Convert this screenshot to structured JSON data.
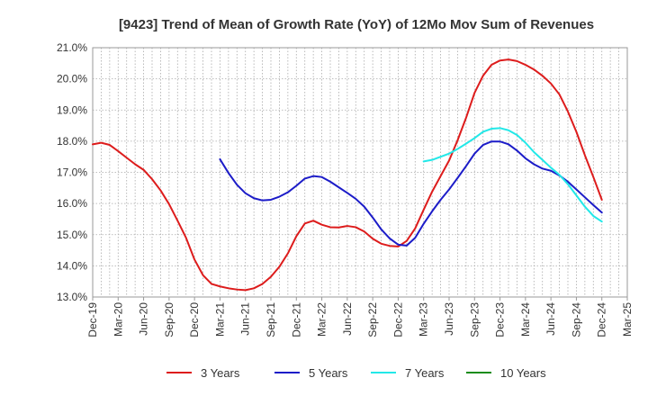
{
  "chart_data": {
    "type": "line",
    "title": "[9423]  Trend of Mean of Growth Rate (YoY) of 12Mo Mov Sum of Revenues",
    "xlabel": "",
    "ylabel": "",
    "ylim": [
      13.0,
      21.0
    ],
    "y_ticks": [
      13.0,
      14.0,
      15.0,
      16.0,
      17.0,
      18.0,
      19.0,
      20.0,
      21.0
    ],
    "y_tick_labels": [
      "13.0%",
      "14.0%",
      "15.0%",
      "16.0%",
      "17.0%",
      "18.0%",
      "19.0%",
      "20.0%",
      "21.0%"
    ],
    "x_tick_labels": [
      "Dec-19",
      "Mar-20",
      "Jun-20",
      "Sep-20",
      "Dec-20",
      "Mar-21",
      "Jun-21",
      "Sep-21",
      "Dec-21",
      "Mar-22",
      "Jun-22",
      "Sep-22",
      "Dec-22",
      "Mar-23",
      "Jun-23",
      "Sep-23",
      "Dec-23",
      "Mar-24",
      "Jun-24",
      "Sep-24",
      "Dec-24",
      "Mar-25"
    ],
    "x_start": "2019-12",
    "x_count_months": 64,
    "grid": true,
    "legend_position": "bottom",
    "series": [
      {
        "name": "3 Years",
        "color": "#dd1c1c",
        "start_index": 0,
        "values": [
          17.9,
          17.95,
          17.88,
          17.68,
          17.47,
          17.26,
          17.08,
          16.78,
          16.42,
          15.98,
          15.45,
          14.9,
          14.2,
          13.7,
          13.42,
          13.34,
          13.28,
          13.24,
          13.22,
          13.28,
          13.42,
          13.65,
          13.97,
          14.4,
          14.95,
          15.36,
          15.45,
          15.32,
          15.24,
          15.23,
          15.28,
          15.24,
          15.1,
          14.87,
          14.71,
          14.64,
          14.62,
          14.8,
          15.2,
          15.8,
          16.38,
          16.88,
          17.38,
          18.03,
          18.75,
          19.55,
          20.1,
          20.45,
          20.59,
          20.62,
          20.57,
          20.45,
          20.3,
          20.1,
          19.85,
          19.5,
          18.95,
          18.3,
          17.55,
          16.85,
          16.12
        ]
      },
      {
        "name": "5 Years",
        "color": "#1c1cc8",
        "start_index": 15,
        "values": [
          17.42,
          16.98,
          16.6,
          16.33,
          16.17,
          16.1,
          16.12,
          16.22,
          16.36,
          16.57,
          16.8,
          16.88,
          16.85,
          16.7,
          16.52,
          16.34,
          16.15,
          15.9,
          15.55,
          15.17,
          14.88,
          14.68,
          14.65,
          14.9,
          15.35,
          15.75,
          16.12,
          16.45,
          16.82,
          17.2,
          17.6,
          17.88,
          17.99,
          17.99,
          17.9,
          17.7,
          17.45,
          17.26,
          17.12,
          17.05,
          16.9,
          16.7,
          16.45,
          16.2,
          15.95,
          15.71
        ]
      },
      {
        "name": "7 Years",
        "color": "#22e8e8",
        "start_index": 39,
        "values": [
          17.35,
          17.4,
          17.5,
          17.6,
          17.75,
          17.92,
          18.1,
          18.3,
          18.4,
          18.42,
          18.35,
          18.2,
          17.95,
          17.65,
          17.4,
          17.15,
          16.92,
          16.62,
          16.26,
          15.9,
          15.6,
          15.42
        ]
      },
      {
        "name": "10 Years",
        "color": "#1a8c1a",
        "start_index": 0,
        "values": []
      }
    ]
  }
}
